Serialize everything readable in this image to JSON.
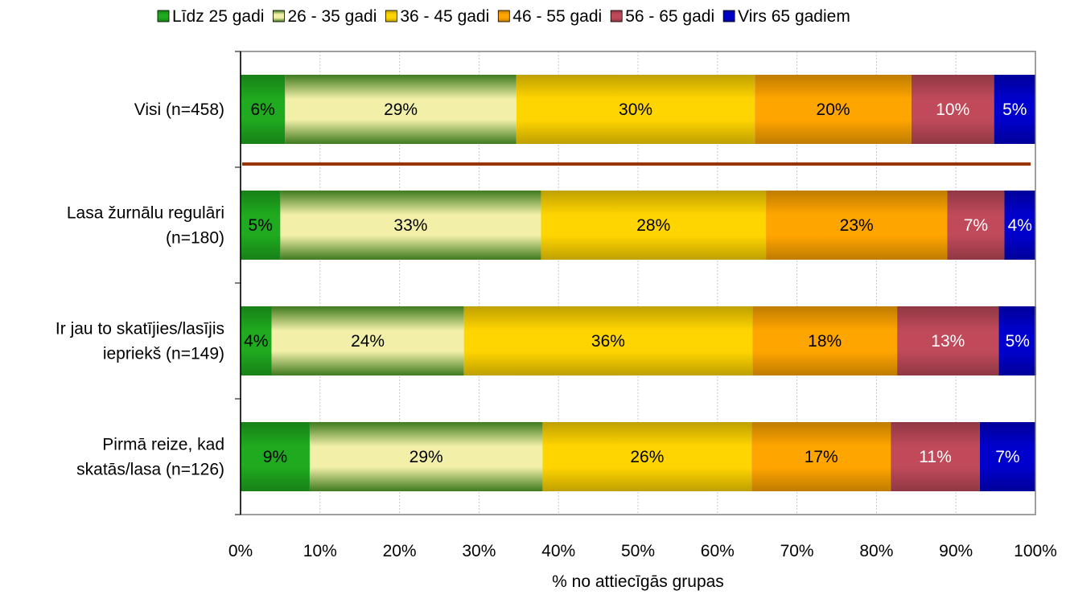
{
  "chart_data": {
    "type": "bar",
    "orientation": "horizontal",
    "stacked": "100%",
    "xlabel": "% no attiecīgās grupas",
    "ylabel": "",
    "xlim": [
      0,
      100
    ],
    "x_ticks": [
      "0%",
      "10%",
      "20%",
      "30%",
      "40%",
      "50%",
      "60%",
      "70%",
      "80%",
      "90%",
      "100%"
    ],
    "grid": true,
    "legend_position": "top",
    "categories": [
      [
        "Visi (n=458)"
      ],
      [
        "Lasa žurnālu regulāri",
        "(n=180)"
      ],
      [
        "Ir jau to skatījies/lasījis",
        "iepriekš (n=149)"
      ],
      [
        "Pirmā reize, kad",
        "skatās/lasa (n=126)"
      ]
    ],
    "series": [
      {
        "name": "Līdz 25 gadi",
        "color": "#1faa1f",
        "values": [
          5.6,
          5.0,
          3.9,
          8.7
        ],
        "labels": [
          "6%",
          "5%",
          "4%",
          "9%"
        ]
      },
      {
        "name": "26 - 35 gadi",
        "color": "#f2f0a8",
        "values": [
          29.1,
          32.8,
          24.2,
          29.3
        ],
        "labels": [
          "29%",
          "33%",
          "24%",
          "29%"
        ]
      },
      {
        "name": "36 - 45 gadi",
        "color": "#ffd500",
        "values": [
          30.0,
          28.3,
          36.3,
          26.3
        ],
        "labels": [
          "30%",
          "28%",
          "36%",
          "26%"
        ]
      },
      {
        "name": "46 - 55 gadi",
        "color": "#ffa500",
        "values": [
          19.7,
          22.8,
          18.2,
          17.5
        ],
        "labels": [
          "20%",
          "23%",
          "18%",
          "17%"
        ]
      },
      {
        "name": "56 - 65 gadi",
        "color": "#c04a5a",
        "values": [
          10.4,
          7.2,
          12.8,
          11.2
        ],
        "labels": [
          "10%",
          "7%",
          "13%",
          "11%"
        ]
      },
      {
        "name": "Virs 65 gadiem",
        "color": "#0000cc",
        "values": [
          5.2,
          3.9,
          4.7,
          7.0
        ],
        "labels": [
          "5%",
          "4%",
          "5%",
          "7%"
        ]
      }
    ],
    "separator_after_row": 0,
    "separator_color": "#993300",
    "label_colors": [
      "#000000",
      "#000000",
      "#000000",
      "#000000",
      "#ffffff",
      "#ffffff"
    ]
  }
}
